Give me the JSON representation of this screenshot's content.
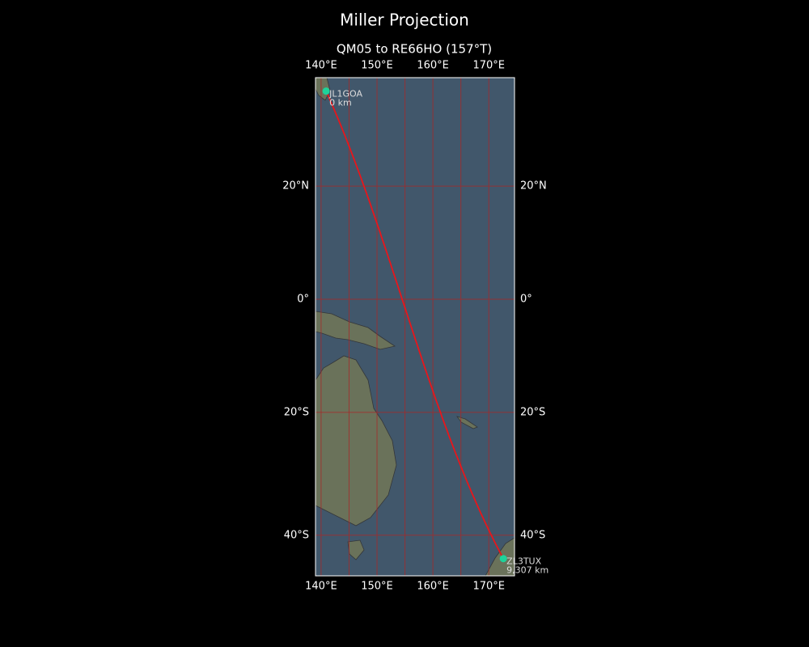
{
  "title": "Miller Projection",
  "map": {
    "title": "QM05 to RE66HO (157°T)",
    "projection": "miller",
    "xlim": [
      139,
      174.6
    ],
    "ylim": [
      -46,
      37.8
    ],
    "xticks": [
      {
        "value": 140,
        "label": "140°E"
      },
      {
        "value": 150,
        "label": "150°E"
      },
      {
        "value": 160,
        "label": "160°E"
      },
      {
        "value": 170,
        "label": "170°E"
      }
    ],
    "yticks": [
      {
        "value": 20,
        "label": "20°N"
      },
      {
        "value": 0,
        "label": "0°"
      },
      {
        "value": -20,
        "label": "20°S"
      },
      {
        "value": -40,
        "label": "40°S"
      }
    ],
    "grid_lon": [
      140,
      145,
      150,
      155,
      160,
      165,
      170
    ],
    "grid_color": "#a52a2a",
    "route_color": "#e8161b",
    "point_color": "#1ed39a",
    "points": [
      {
        "name": "JL1GOA",
        "label": "0 km",
        "lon": 140.9,
        "lat": 35.7
      },
      {
        "name": "ZL3TUX",
        "label": "9,307 km",
        "lon": 172.6,
        "lat": -43.5
      }
    ]
  }
}
